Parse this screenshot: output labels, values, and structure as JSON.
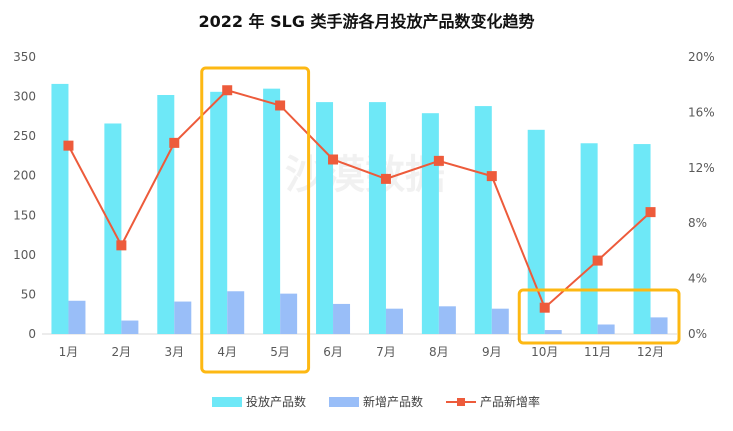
{
  "chart_data": {
    "type": "bar",
    "title": "2022 年 SLG 类手游各月投放产品数变化趋势",
    "categories": [
      "1月",
      "2月",
      "3月",
      "4月",
      "5月",
      "6月",
      "7月",
      "8月",
      "9月",
      "10月",
      "11月",
      "12月"
    ],
    "series": [
      {
        "name": "投放产品数",
        "type": "bar",
        "axis": "left",
        "color": "#6EE8F7",
        "values": [
          316,
          266,
          302,
          306,
          310,
          293,
          293,
          279,
          288,
          258,
          241,
          240
        ]
      },
      {
        "name": "新增产品数",
        "type": "bar",
        "axis": "left",
        "color": "#99BEF8",
        "values": [
          42,
          17,
          41,
          54,
          51,
          38,
          32,
          35,
          32,
          5,
          12,
          21
        ]
      },
      {
        "name": "产品新增率",
        "type": "line",
        "axis": "right",
        "color": "#ED5B3B",
        "values": [
          13.6,
          6.4,
          13.8,
          17.6,
          16.5,
          12.6,
          11.2,
          12.5,
          11.4,
          1.9,
          5.3,
          8.8
        ]
      }
    ],
    "y_left": {
      "min": 0,
      "max": 350,
      "ticks": [
        "0",
        "50",
        "100",
        "150",
        "200",
        "250",
        "300",
        "350"
      ]
    },
    "y_right": {
      "min": 0,
      "max": 20,
      "unit": "%",
      "ticks": [
        "0%",
        "4%",
        "8%",
        "12%",
        "16%",
        "20%"
      ]
    },
    "grid": false,
    "legend": "bottom",
    "highlights": [
      {
        "from": "4月",
        "to": "5月",
        "color": "#FDB813"
      },
      {
        "from": "10月",
        "to": "12月",
        "color": "#FDB813"
      }
    ]
  },
  "watermark": "沙漠数据"
}
